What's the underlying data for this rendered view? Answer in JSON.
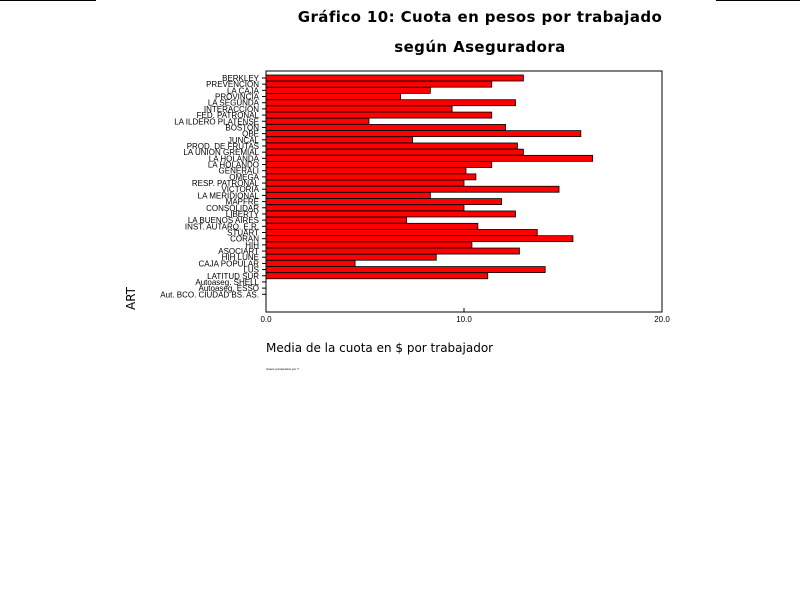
{
  "chart_data": {
    "type": "bar",
    "orientation": "horizontal",
    "title": "Gráfico 10: Cuota en pesos por trabajado",
    "subtitle": "según Aseguradora",
    "xlabel": "Media de la cuota en $ por trabajador",
    "ylabel": "ART",
    "xlim": [
      0,
      20
    ],
    "x_ticks": [
      "0.0",
      "10.0",
      "20.0"
    ],
    "grid": false,
    "bar_color": "#ff0000",
    "footnote": "Casos ponderados por T",
    "categories": [
      "BERKLEY",
      "PREVENCION",
      "LA CAJA",
      "PROVINCIA",
      "LA SEGUNDA",
      "INTERACCION",
      "FED. PATRONAL",
      "LA ILDERO PLATENSE",
      "BOSTON",
      "QBE",
      "JUNCAL",
      "PROD. DE FRUTAS",
      "LA UNION GREMIAL",
      "LA HOLANDA",
      "LA HOLANDO",
      "GENERALI",
      "OMEGA",
      "RESP. PATRONAL",
      "VICTORIA",
      "LA MERIDIONAL",
      "MAPFRE",
      "CONSOLIDAR",
      "LIBERTY",
      "LA BUENOS AIRES",
      "INST. AUTARQ. E.R.",
      "STUART",
      "CORAN",
      "HIH",
      "ASOCIART",
      "HIH LUNE",
      "CAJA POPULAR",
      "LUS",
      "LATITUD SUR",
      "Autoaseg. SHELL",
      "Autoaseg. ESSO",
      "Aut. BCO. CIUDAD BS. AS."
    ],
    "values": [
      13.0,
      11.4,
      8.3,
      6.8,
      12.6,
      9.4,
      11.4,
      5.2,
      12.1,
      15.9,
      7.4,
      12.7,
      13.0,
      16.5,
      11.4,
      10.1,
      10.6,
      10.0,
      14.8,
      8.3,
      11.9,
      10.0,
      12.6,
      7.1,
      10.7,
      13.7,
      15.5,
      10.4,
      12.8,
      8.6,
      4.5,
      14.1,
      11.2,
      0,
      0,
      0
    ]
  }
}
